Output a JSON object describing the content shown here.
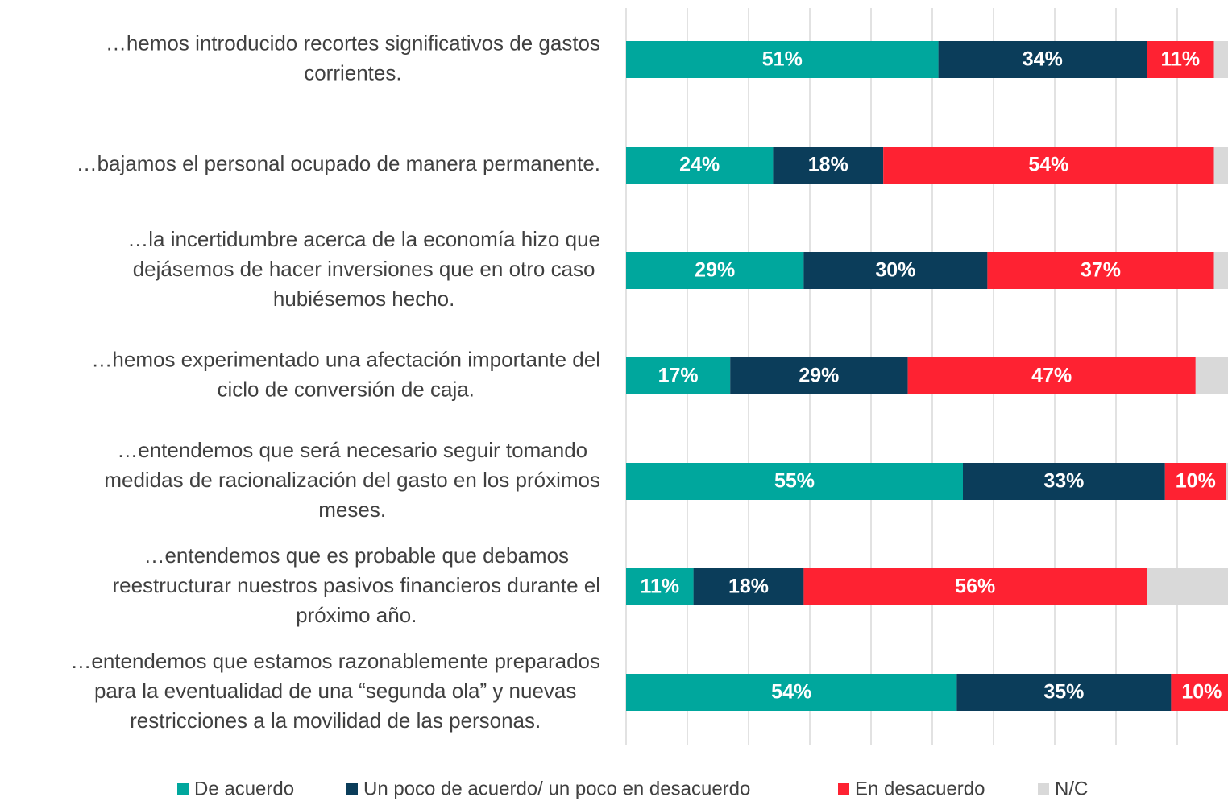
{
  "chart_data": {
    "type": "stacked_barh",
    "categories": [
      [
        "…hemos introducido recortes significativos de gastos",
        "corrientes."
      ],
      [
        "…bajamos el personal ocupado de manera permanente."
      ],
      [
        "…la incertidumbre acerca de la economía hizo que",
        "dejásemos de hacer inversiones que en otro caso",
        "hubiésemos hecho."
      ],
      [
        "…hemos experimentado una afectación importante del",
        "ciclo de conversión de caja."
      ],
      [
        "…entendemos que será necesario seguir tomando",
        "medidas de racionalización del gasto en los próximos",
        "meses."
      ],
      [
        "…entendemos que es probable que debamos",
        "reestructurar nuestros pasivos financieros durante el",
        "próximo año."
      ],
      [
        "…entendemos que estamos razonablemente preparados",
        "para la eventualidad de una “segunda ola” y nuevas",
        "restricciones a la movilidad de las personas."
      ]
    ],
    "series": [
      {
        "name": "De acuerdo",
        "color": "#00a79d",
        "values": [
          51,
          24,
          29,
          17,
          55,
          11,
          54
        ],
        "value_labels": [
          "51%",
          "24%",
          "29%",
          "17%",
          "55%",
          "11%",
          "54%"
        ]
      },
      {
        "name": "Un poco de acuerdo/ un poco en desacuerdo",
        "color": "#0b3d5a",
        "values": [
          34,
          18,
          30,
          29,
          33,
          18,
          35
        ],
        "value_labels": [
          "34%",
          "18%",
          "30%",
          "29%",
          "33%",
          "18%",
          "35%"
        ]
      },
      {
        "name": "En desacuerdo",
        "color": "#fe2232",
        "values": [
          11,
          54,
          37,
          47,
          10,
          56,
          10
        ],
        "value_labels": [
          "11%",
          "54%",
          "37%",
          "47%",
          "10%",
          "56%",
          "10%"
        ]
      },
      {
        "name": "N/C",
        "color": "#d9d9d9",
        "values": [
          4,
          4,
          4,
          7,
          2,
          15,
          1
        ]
      }
    ],
    "xlim": [
      0,
      100
    ],
    "xticks": [
      0,
      10,
      20,
      30,
      40,
      50,
      60,
      70,
      80,
      90,
      100
    ],
    "grid": true,
    "legend": "bottom"
  }
}
